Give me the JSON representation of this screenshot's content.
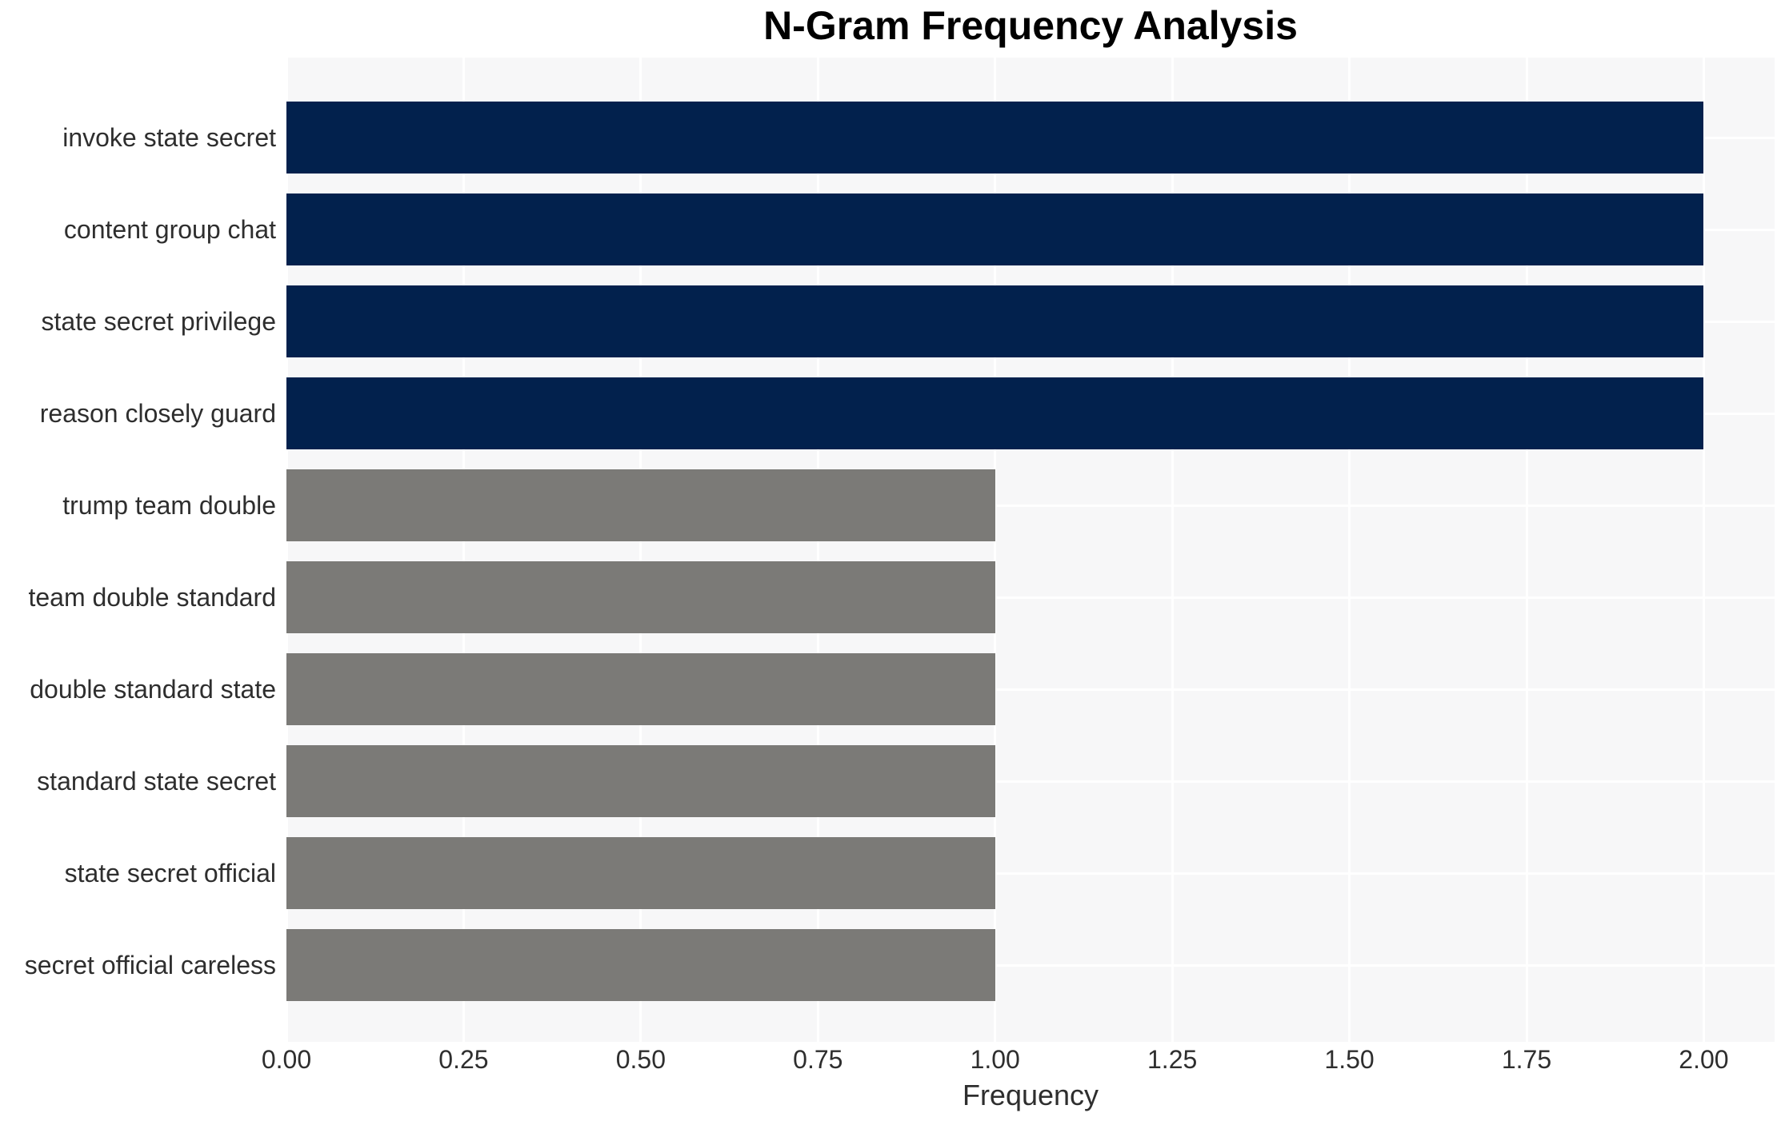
{
  "chart_data": {
    "type": "bar",
    "orientation": "horizontal",
    "title": "N-Gram Frequency Analysis",
    "xlabel": "Frequency",
    "ylabel": "",
    "categories": [
      "invoke state secret",
      "content group chat",
      "state secret privilege",
      "reason closely guard",
      "trump team double",
      "team double standard",
      "double standard state",
      "standard state secret",
      "state secret official",
      "secret official careless"
    ],
    "values": [
      2,
      2,
      2,
      2,
      1,
      1,
      1,
      1,
      1,
      1
    ],
    "bar_colors": [
      "#02214D",
      "#02214D",
      "#02214D",
      "#02214D",
      "#7B7A77",
      "#7B7A77",
      "#7B7A77",
      "#7B7A77",
      "#7B7A77",
      "#7B7A77"
    ],
    "xlim": [
      0,
      2.1
    ],
    "xticks": {
      "values": [
        0,
        0.25,
        0.5,
        0.75,
        1.0,
        1.25,
        1.5,
        1.75,
        2.0
      ],
      "labels": [
        "0.00",
        "0.25",
        "0.50",
        "0.75",
        "1.00",
        "1.25",
        "1.50",
        "1.75",
        "2.00"
      ]
    },
    "grid": true,
    "legend": "none",
    "colors": {
      "highlight": "#02214D",
      "muted": "#7B7A77",
      "plot_background": "#F7F7F8",
      "gridline": "#FFFFFF",
      "tick_text": "#2E2E2E",
      "title_text": "#000000"
    }
  }
}
